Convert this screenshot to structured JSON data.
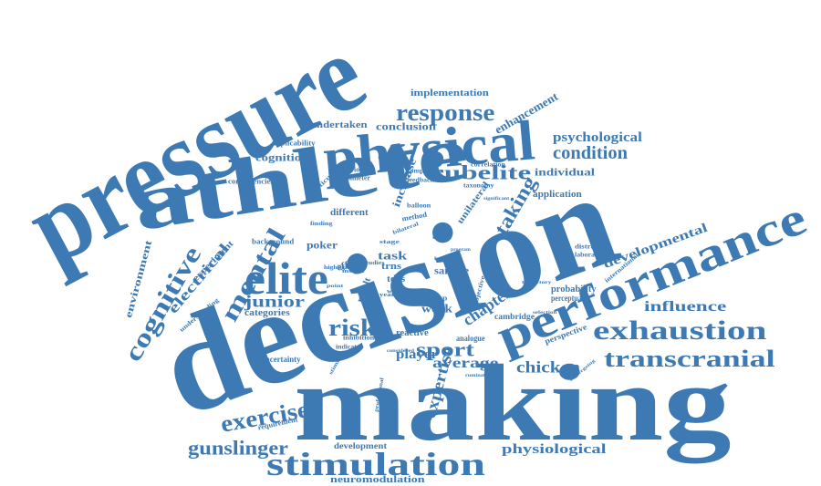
{
  "color": "#3d7ab4",
  "words": [
    {
      "text": "pressure"
    },
    {
      "text": "decision"
    },
    {
      "text": "making"
    },
    {
      "text": "athlete"
    },
    {
      "text": "physical"
    },
    {
      "text": "performance"
    },
    {
      "text": "elite"
    },
    {
      "text": "stimulation"
    },
    {
      "text": "exhaustion"
    },
    {
      "text": "transcranial"
    },
    {
      "text": "cognitive"
    },
    {
      "text": "mental"
    },
    {
      "text": "response"
    },
    {
      "text": "taking"
    },
    {
      "text": "condition"
    },
    {
      "text": "psychological"
    },
    {
      "text": "subelite"
    },
    {
      "text": "exercise"
    },
    {
      "text": "gunslinger"
    },
    {
      "text": "sport"
    },
    {
      "text": "risk"
    },
    {
      "text": "junior"
    },
    {
      "text": "expertise"
    },
    {
      "text": "chapter"
    },
    {
      "text": "developmental"
    },
    {
      "text": "influence"
    },
    {
      "text": "chicken"
    },
    {
      "text": "physiological"
    },
    {
      "text": "average"
    },
    {
      "text": "player"
    },
    {
      "text": "electrical"
    },
    {
      "text": "enhancement"
    },
    {
      "text": "implementation"
    },
    {
      "text": "conclusion"
    },
    {
      "text": "cognition"
    },
    {
      "text": "undertaken"
    },
    {
      "text": "individual"
    },
    {
      "text": "application"
    },
    {
      "text": "environment"
    },
    {
      "text": "poker"
    },
    {
      "text": "task"
    },
    {
      "text": "sample"
    },
    {
      "text": "work"
    },
    {
      "text": "neuromodulation"
    },
    {
      "text": "development"
    },
    {
      "text": "increase"
    },
    {
      "text": "different"
    },
    {
      "text": "unilateral"
    },
    {
      "text": "probability"
    },
    {
      "text": "perceptual"
    },
    {
      "text": "experiment"
    },
    {
      "text": "uncertainty"
    },
    {
      "text": "categories"
    },
    {
      "text": "reactive"
    },
    {
      "text": "cambridge"
    },
    {
      "text": "analogue"
    },
    {
      "text": "perspective"
    },
    {
      "text": "applicability"
    },
    {
      "text": "behavioural"
    },
    {
      "text": "parameter"
    },
    {
      "text": "contingencies"
    },
    {
      "text": "background"
    },
    {
      "text": "effect"
    },
    {
      "text": "trns"
    },
    {
      "text": "tdcs"
    },
    {
      "text": "result"
    },
    {
      "text": "inhibition"
    },
    {
      "text": "indicator"
    },
    {
      "text": "requirement"
    },
    {
      "text": "understanding"
    },
    {
      "text": "competition"
    },
    {
      "text": "feedback"
    },
    {
      "text": "taxonomy"
    },
    {
      "text": "correlation"
    },
    {
      "text": "significant"
    },
    {
      "text": "method"
    },
    {
      "text": "balloon"
    },
    {
      "text": "laboratory"
    },
    {
      "text": "distracting"
    },
    {
      "text": "international"
    },
    {
      "text": "particular"
    },
    {
      "text": "highlight"
    },
    {
      "text": "insight"
    },
    {
      "text": "studies"
    },
    {
      "text": "bilateral"
    },
    {
      "text": "stage"
    },
    {
      "text": "year"
    },
    {
      "text": "group"
    },
    {
      "text": "world"
    },
    {
      "text": "professional"
    },
    {
      "text": "objective"
    },
    {
      "text": "program"
    },
    {
      "text": "bart"
    },
    {
      "text": "twice"
    },
    {
      "text": "point"
    },
    {
      "text": "finding"
    },
    {
      "text": "stimulus"
    },
    {
      "text": "rumination"
    },
    {
      "text": "considered"
    },
    {
      "text": "trajectory"
    },
    {
      "text": "selection"
    },
    {
      "text": "undergoing"
    }
  ]
}
